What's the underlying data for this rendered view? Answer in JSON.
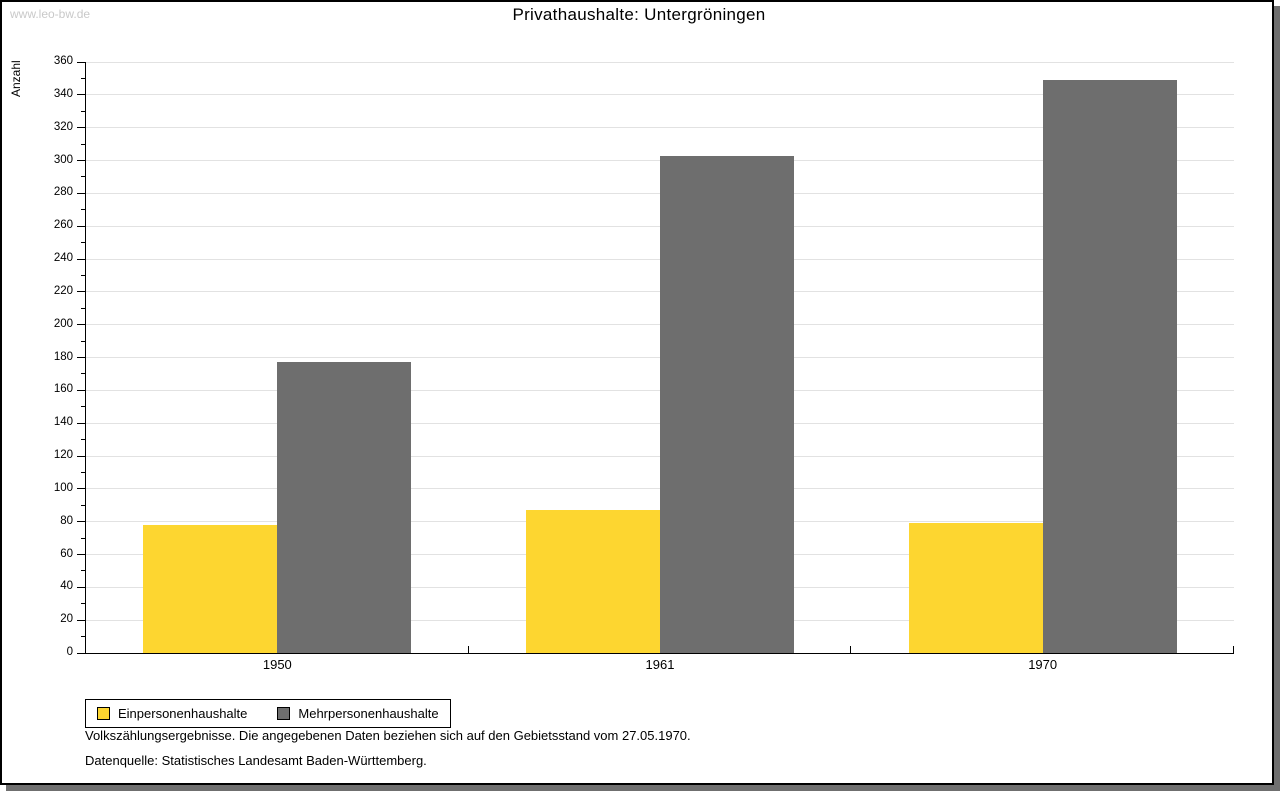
{
  "watermark": "www.leo-bw.de",
  "title": "Privathaushalte: Untergröningen",
  "chart_data": {
    "type": "bar",
    "title": "Privathaushalte: Untergröningen",
    "categories": [
      "1950",
      "1961",
      "1970"
    ],
    "series": [
      {
        "name": "Einpersonenhaushalte",
        "color": "#fdd630",
        "values": [
          78,
          87,
          79
        ]
      },
      {
        "name": "Mehrpersonenhaushalte",
        "color": "#6e6e6e",
        "values": [
          177,
          303,
          349
        ]
      }
    ],
    "xlabel": "",
    "ylabel": "Anzahl",
    "ylim": [
      0,
      360
    ],
    "ytick_step": 20,
    "minor_tick_step": 10,
    "grid": true,
    "legend_position": "bottom-left"
  },
  "footnotes": [
    "Volkszählungsergebnisse. Die angegebenen Daten beziehen sich auf den Gebietsstand vom 27.05.1970.",
    "Datenquelle: Statistisches Landesamt Baden-Württemberg."
  ],
  "colors": {
    "bar_yellow": "#fdd630",
    "bar_gray": "#6e6e6e",
    "grid": "#e2e2e2",
    "axis": "#000000",
    "frame_shadow": "#6f6f6f",
    "watermark": "#c9c9c9"
  }
}
